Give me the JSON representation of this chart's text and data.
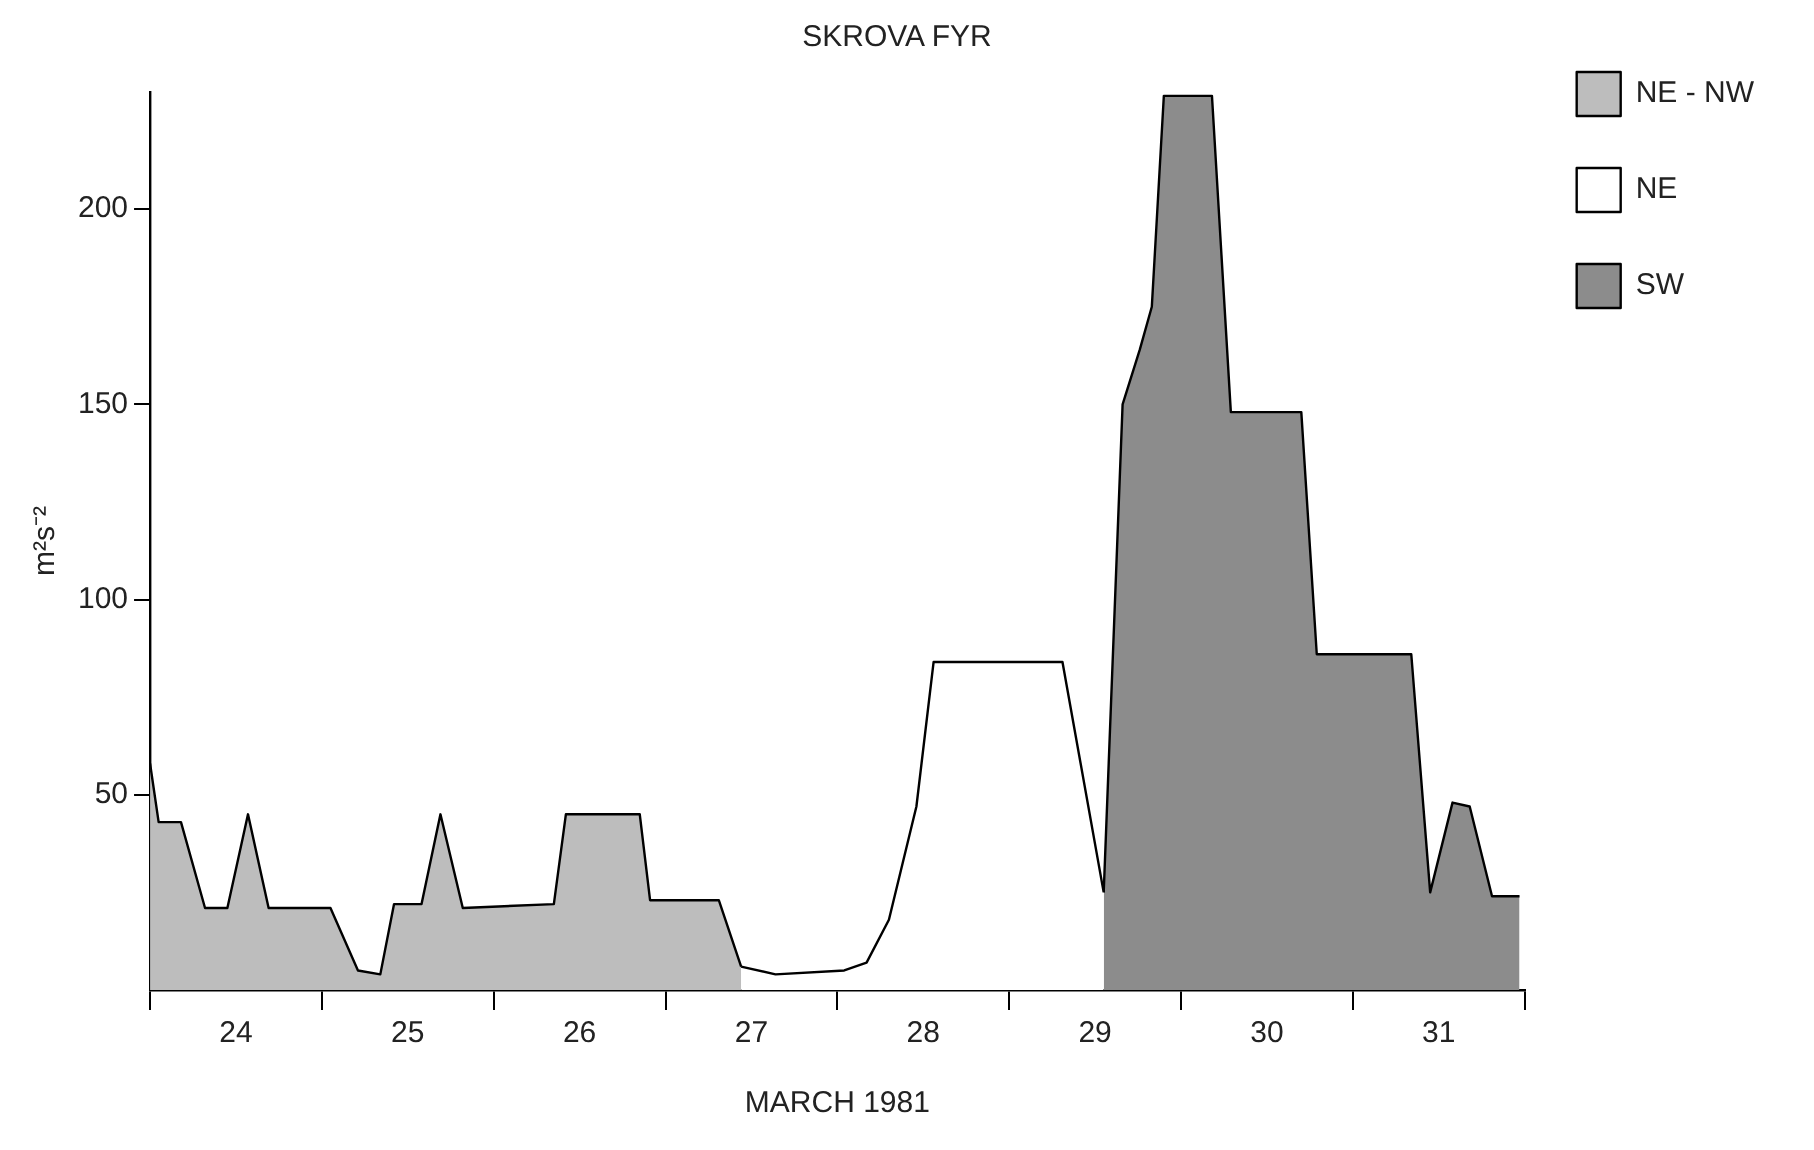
{
  "chart_data": {
    "type": "area",
    "title": "SKROVA FYR",
    "xlabel": "MARCH 1981",
    "ylabel": "m²s⁻²",
    "xlim": [
      24,
      32
    ],
    "xticks": [
      {
        "value": 24,
        "label": null
      },
      {
        "value": 24.5,
        "label": "24"
      },
      {
        "value": 25,
        "label": null
      },
      {
        "value": 25.5,
        "label": "25"
      },
      {
        "value": 26,
        "label": null
      },
      {
        "value": 26.5,
        "label": "26"
      },
      {
        "value": 27,
        "label": null
      },
      {
        "value": 27.5,
        "label": "27"
      },
      {
        "value": 28,
        "label": null
      },
      {
        "value": 28.5,
        "label": "28"
      },
      {
        "value": 29,
        "label": null
      },
      {
        "value": 29.5,
        "label": "29"
      },
      {
        "value": 30,
        "label": null
      },
      {
        "value": 30.5,
        "label": "30"
      },
      {
        "value": 31,
        "label": null
      },
      {
        "value": 31.5,
        "label": "31"
      },
      {
        "value": 32,
        "label": null
      }
    ],
    "ylim": [
      0,
      230
    ],
    "yticks": [
      50,
      100,
      150,
      200
    ],
    "grid": false,
    "legend": "top right",
    "marker": "none",
    "line_style": "solid",
    "series": [
      {
        "name": "NE - NW",
        "color": "#bdbdbd",
        "x": [
          24.0,
          24.05,
          24.18,
          24.32,
          24.45,
          24.57,
          24.69,
          25.05,
          25.21,
          25.34,
          25.42,
          25.58,
          25.69,
          25.82,
          26.35,
          26.42,
          26.85,
          26.91,
          27.31,
          27.44
        ],
        "values": [
          58,
          43,
          43,
          21,
          21,
          45,
          21,
          21,
          5,
          4,
          22,
          22,
          45,
          21,
          22,
          45,
          45,
          23,
          23,
          6
        ]
      },
      {
        "name": "NE",
        "color": "#ffffff",
        "x": [
          27.44,
          27.64,
          28.04,
          28.17,
          28.3,
          28.46,
          28.56,
          29.31,
          29.55
        ],
        "values": [
          6,
          4,
          5,
          7,
          18,
          47,
          84,
          84,
          25
        ]
      },
      {
        "name": "SW",
        "color": "#8c8c8c",
        "x": [
          29.55,
          29.66,
          29.76,
          29.83,
          29.9,
          30.18,
          30.29,
          30.7,
          30.79,
          31.34,
          31.45,
          31.58,
          31.68,
          31.81,
          31.97
        ],
        "values": [
          25,
          150,
          164,
          175,
          229,
          229,
          148,
          148,
          86,
          86,
          25,
          48,
          47,
          24,
          24
        ]
      }
    ]
  }
}
